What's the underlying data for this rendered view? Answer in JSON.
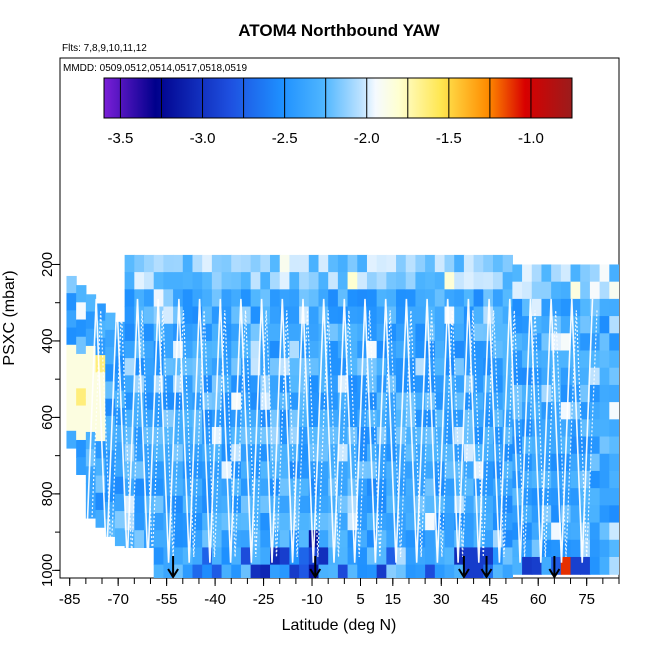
{
  "chart_data": {
    "type": "heatmap",
    "title": "ATOM4 Northbound YAW",
    "subtitle_flights": "Flts: 7,8,9,10,11,12",
    "subtitle_dates": "MMDD: 0509,0512,0514,0517,0518,0519",
    "xlabel": "Latitude (deg N)",
    "ylabel": "PSXC (mbar)",
    "x_ticks": [
      "-85",
      "-70",
      "-55",
      "-40",
      "-25",
      "-10",
      "5",
      "15",
      "30",
      "45",
      "60",
      "75"
    ],
    "x_tick_values": [
      -85,
      -70,
      -55,
      -40,
      -25,
      -10,
      5,
      15,
      30,
      45,
      60,
      75
    ],
    "y_ticks": [
      "200",
      "400",
      "600",
      "800",
      "1000"
    ],
    "y_tick_values": [
      200,
      400,
      600,
      800,
      1000
    ],
    "xlim": [
      -88,
      85
    ],
    "ylim_inverted": [
      1020,
      -340
    ],
    "colorbar": {
      "ticks": [
        "-3.5",
        "-3.0",
        "-2.5",
        "-2.0",
        "-1.5",
        "-1.0"
      ],
      "tick_values": [
        -3.5,
        -3.0,
        -2.5,
        -2.0,
        -1.5,
        -1.0
      ],
      "range": [
        -3.6,
        -0.75
      ]
    },
    "profile_markers_lat": [
      -53,
      -9,
      37,
      44,
      65
    ],
    "colors": {
      "purple": "#7b1fd8",
      "dark_blue": "#00008b",
      "blue": "#1f4fe0",
      "dodger_blue": "#1e90ff",
      "light_blue": "#7cc8ff",
      "pale": "#f5faff",
      "pale_yellow": "#ffffd0",
      "yellow": "#ffe650",
      "orange": "#ff8c00",
      "red": "#d80000",
      "dark_red": "#9b1c1c"
    }
  }
}
